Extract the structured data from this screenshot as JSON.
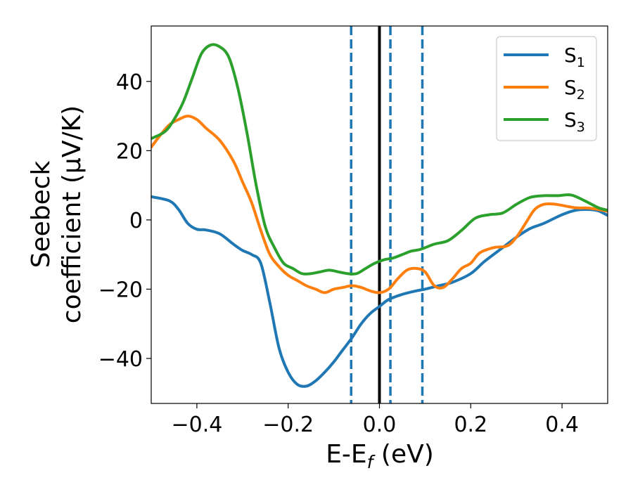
{
  "chart_data": {
    "type": "line",
    "title": "",
    "xlabel": {
      "base": "E-E",
      "sub": "f",
      "unit": " (eV)"
    },
    "ylabel": {
      "line1": "Seebeck",
      "line2": "coefficient  (μV/K)"
    },
    "xlim": [
      -0.5,
      0.5
    ],
    "ylim": [
      -53,
      56
    ],
    "xticks": [
      -0.4,
      -0.2,
      0.0,
      0.2,
      0.4
    ],
    "xtick_labels": [
      "−0.4",
      "−0.2",
      "0.0",
      "0.2",
      "0.4"
    ],
    "yticks": [
      -40,
      -20,
      0,
      20,
      40
    ],
    "ytick_labels": [
      "−40",
      "−20",
      "0",
      "20",
      "40"
    ],
    "grid": false,
    "legend_position": "top-right",
    "series": [
      {
        "name": "S",
        "sub": "1",
        "color": "#1f77b4",
        "x": [
          -0.5,
          -0.46,
          -0.44,
          -0.42,
          -0.4,
          -0.38,
          -0.35,
          -0.32,
          -0.3,
          -0.28,
          -0.26,
          -0.24,
          -0.22,
          -0.2,
          -0.18,
          -0.16,
          -0.14,
          -0.12,
          -0.1,
          -0.08,
          -0.06,
          -0.04,
          -0.02,
          0.0,
          0.02,
          0.05,
          0.08,
          0.1,
          0.13,
          0.16,
          0.2,
          0.23,
          0.27,
          0.3,
          0.33,
          0.36,
          0.4,
          0.43,
          0.46,
          0.48,
          0.5
        ],
        "y": [
          6.7,
          5.5,
          3.0,
          -1.0,
          -2.7,
          -2.9,
          -4.0,
          -7.0,
          -8.8,
          -10.0,
          -12.5,
          -24.0,
          -37.0,
          -44.0,
          -47.5,
          -48.0,
          -46.5,
          -44.0,
          -41.0,
          -37.5,
          -34.0,
          -30.0,
          -27.0,
          -25.0,
          -23.0,
          -21.5,
          -20.5,
          -20.0,
          -19.0,
          -18.0,
          -15.5,
          -12.0,
          -8.0,
          -5.0,
          -2.5,
          -1.0,
          1.5,
          2.8,
          3.0,
          2.6,
          1.3
        ]
      },
      {
        "name": "S",
        "sub": "2",
        "color": "#ff7f0e",
        "x": [
          -0.5,
          -0.48,
          -0.46,
          -0.44,
          -0.42,
          -0.4,
          -0.38,
          -0.35,
          -0.32,
          -0.3,
          -0.28,
          -0.26,
          -0.24,
          -0.22,
          -0.2,
          -0.18,
          -0.16,
          -0.14,
          -0.12,
          -0.1,
          -0.08,
          -0.06,
          -0.04,
          -0.02,
          0.0,
          0.02,
          0.04,
          0.06,
          0.08,
          0.1,
          0.12,
          0.14,
          0.16,
          0.18,
          0.2,
          0.22,
          0.25,
          0.28,
          0.3,
          0.32,
          0.34,
          0.36,
          0.38,
          0.4,
          0.43,
          0.46,
          0.5
        ],
        "y": [
          21.0,
          24.5,
          27.5,
          29.0,
          30.0,
          29.0,
          26.5,
          23.0,
          17.0,
          11.0,
          5.0,
          -3.0,
          -10.0,
          -13.5,
          -16.0,
          -17.5,
          -19.0,
          -20.0,
          -21.0,
          -20.0,
          -19.5,
          -19.0,
          -19.5,
          -20.5,
          -21.0,
          -20.0,
          -17.0,
          -14.5,
          -14.0,
          -15.0,
          -19.0,
          -19.5,
          -17.0,
          -14.0,
          -12.5,
          -9.5,
          -8.0,
          -7.5,
          -5.0,
          -1.0,
          3.0,
          4.5,
          4.6,
          4.2,
          3.5,
          3.4,
          2.5
        ]
      },
      {
        "name": "S",
        "sub": "3",
        "color": "#2ca02c",
        "x": [
          -0.5,
          -0.47,
          -0.45,
          -0.43,
          -0.41,
          -0.39,
          -0.37,
          -0.35,
          -0.33,
          -0.31,
          -0.29,
          -0.27,
          -0.25,
          -0.23,
          -0.21,
          -0.19,
          -0.17,
          -0.15,
          -0.13,
          -0.11,
          -0.09,
          -0.07,
          -0.05,
          -0.03,
          -0.01,
          0.01,
          0.03,
          0.05,
          0.07,
          0.09,
          0.12,
          0.15,
          0.18,
          0.21,
          0.24,
          0.27,
          0.3,
          0.33,
          0.36,
          0.39,
          0.42,
          0.45,
          0.48,
          0.5
        ],
        "y": [
          23.5,
          25.5,
          29.0,
          34.0,
          41.0,
          48.0,
          50.5,
          50.0,
          47.0,
          38.0,
          25.0,
          10.0,
          -2.0,
          -8.0,
          -12.5,
          -14.0,
          -15.5,
          -15.5,
          -15.0,
          -14.5,
          -15.0,
          -15.5,
          -15.5,
          -14.0,
          -12.5,
          -11.5,
          -11.0,
          -10.0,
          -9.0,
          -8.5,
          -7.0,
          -6.0,
          -3.0,
          0.5,
          1.5,
          2.0,
          4.5,
          6.5,
          7.0,
          7.0,
          7.2,
          5.5,
          3.5,
          2.8
        ]
      }
    ],
    "vertical_lines": [
      {
        "x": -0.062,
        "style": "dashed",
        "color": "#1f77b4"
      },
      {
        "x": 0.0,
        "style": "solid",
        "color": "#000000"
      },
      {
        "x": 0.024,
        "style": "dashed",
        "color": "#1f77b4"
      },
      {
        "x": 0.094,
        "style": "dashed",
        "color": "#1f77b4"
      }
    ]
  }
}
